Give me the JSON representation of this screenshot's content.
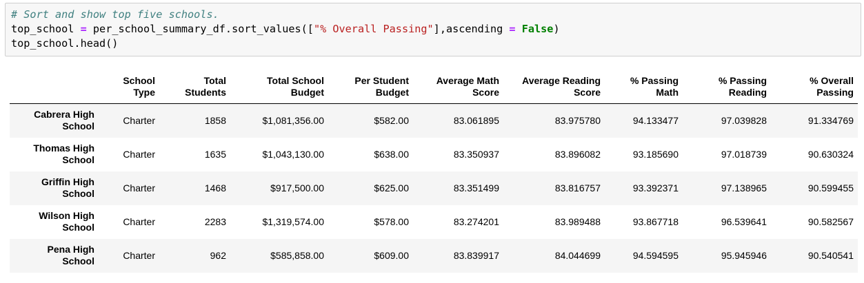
{
  "code": {
    "comment": "# Sort and show top five schools.",
    "line2": {
      "var": "top_school",
      "eq": "=",
      "call": "per_school_summary_df.sort_values([",
      "arg": "\"% Overall Passing\"",
      "mid": "],ascending",
      "eq2": "=",
      "kw": "False",
      "close": ")"
    },
    "line3": "top_school.head()"
  },
  "table": {
    "columns": [
      "",
      "School Type",
      "Total Students",
      "Total School Budget",
      "Per Student Budget",
      "Average Math Score",
      "Average Reading Score",
      "% Passing Math",
      "% Passing Reading",
      "% Overall Passing"
    ],
    "rows": [
      {
        "school": "Cabrera High School",
        "cells": [
          "Charter",
          "1858",
          "$1,081,356.00",
          "$582.00",
          "83.061895",
          "83.975780",
          "94.133477",
          "97.039828",
          "91.334769"
        ]
      },
      {
        "school": "Thomas High School",
        "cells": [
          "Charter",
          "1635",
          "$1,043,130.00",
          "$638.00",
          "83.350937",
          "83.896082",
          "93.185690",
          "97.018739",
          "90.630324"
        ]
      },
      {
        "school": "Griffin High School",
        "cells": [
          "Charter",
          "1468",
          "$917,500.00",
          "$625.00",
          "83.351499",
          "83.816757",
          "93.392371",
          "97.138965",
          "90.599455"
        ]
      },
      {
        "school": "Wilson High School",
        "cells": [
          "Charter",
          "2283",
          "$1,319,574.00",
          "$578.00",
          "83.274201",
          "83.989488",
          "93.867718",
          "96.539641",
          "90.582567"
        ]
      },
      {
        "school": "Pena High School",
        "cells": [
          "Charter",
          "962",
          "$585,858.00",
          "$609.00",
          "83.839917",
          "84.044699",
          "94.594595",
          "95.945946",
          "90.540541"
        ]
      }
    ]
  }
}
